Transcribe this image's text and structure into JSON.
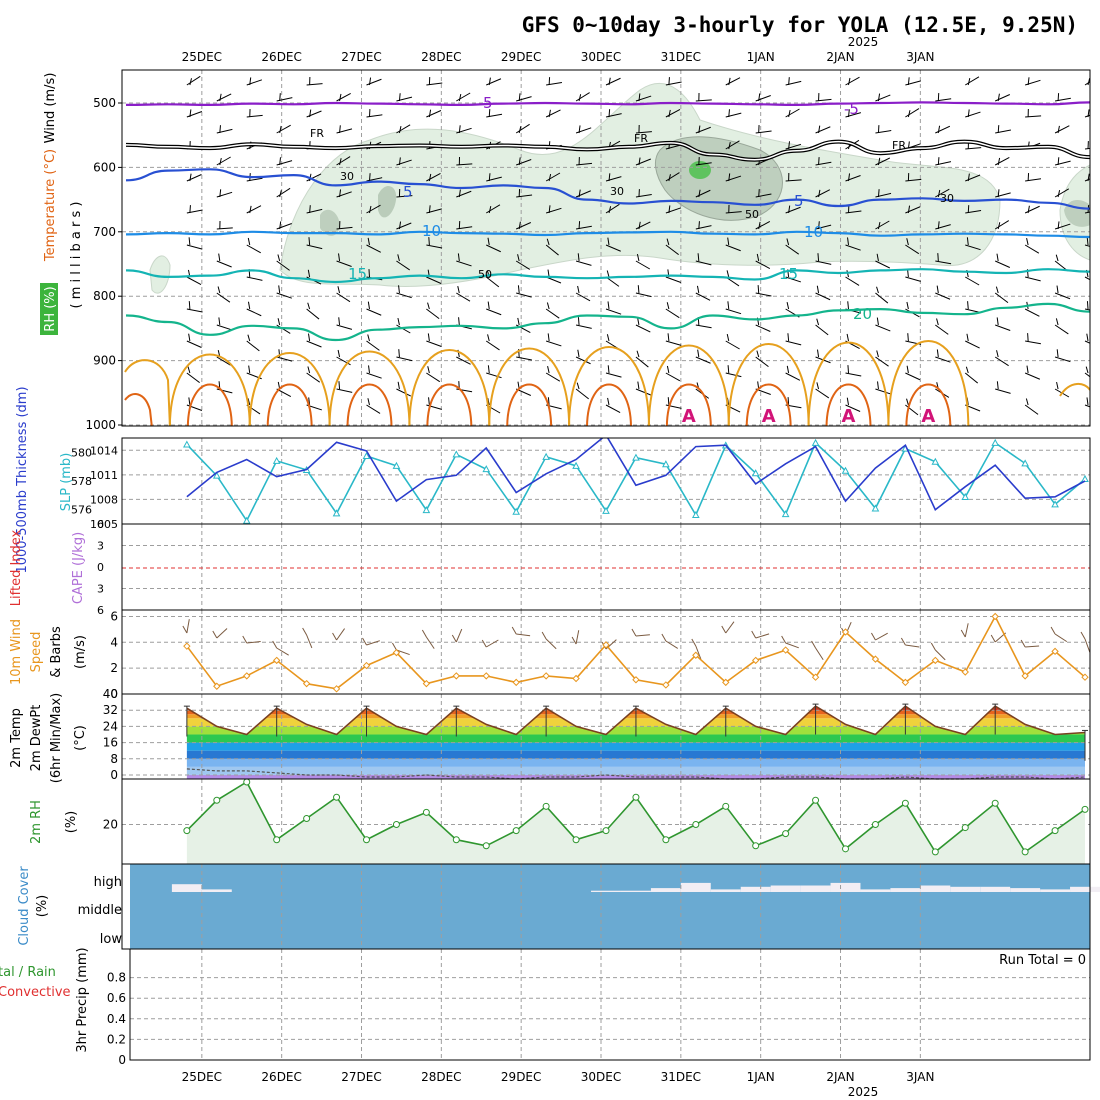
{
  "title": "GFS 0~10day 3-hourly for YOLA (12.5E, 9.25N)",
  "year_label": "2025",
  "date_labels": [
    "25DEC",
    "26DEC",
    "27DEC",
    "28DEC",
    "29DEC",
    "30DEC",
    "31DEC",
    "1JAN",
    "2JAN",
    "3JAN"
  ],
  "run_total_label": "Run Total = 0",
  "colors": {
    "wind_barb": "#000000",
    "temp_purple": "#8a1ec8",
    "temp_black": "#000000",
    "temp_blue": "#2850d2",
    "temp_lightblue": "#1e8ce6",
    "temp_teal": "#14b4b4",
    "temp_green": "#14b48c",
    "temp_orange": "#e6a01e",
    "temp_darkorange": "#e06414",
    "temp_magenta": "#d21478",
    "rh_fill": "#e2efe2",
    "rh_dark": "#a0b4a0",
    "thickness": "#2a3ccc",
    "slp": "#2ab8c8",
    "lifted_zero": "#e03030",
    "wind10m": "#e8961e",
    "temp2m_line": "#7a4020",
    "dewpt_line": "#555555",
    "rh2m": "#2f962f",
    "rh2m_fill": "#e6f1e6",
    "cloud_fill": "#6aaad2",
    "cloud_bar": "#f2eef4"
  },
  "panels": {
    "upper_air": {
      "ylabel_wind": "Wind (m/s)",
      "ylabel_temp": "Temperature (°C)",
      "ylabel_rh": "RH (%)",
      "ylabel_unit": "( m i l l i b a r s )",
      "pressure_ticks": [
        "500",
        "600",
        "700",
        "800",
        "900",
        "1000"
      ],
      "contour_labels": [
        "5",
        "-5",
        "FR",
        "FR",
        "FR",
        "-5",
        "5",
        "10",
        "15",
        "10",
        "15",
        "20",
        "30",
        "30",
        "30",
        "50",
        "50"
      ]
    },
    "thickness": {
      "ylabel_left": "1000-500mb Thickness (dm)",
      "ylabel_right": "SLP (mb)",
      "ticks_left": [
        "580",
        "578",
        "576"
      ],
      "ticks_right": [
        "1014",
        "1011",
        "1008",
        "1005"
      ]
    },
    "stability": {
      "ylabel_left": "Lifted Index",
      "ylabel_right": "CAPE (J/kg)",
      "ticks": [
        "-6",
        "-3",
        "0",
        "3",
        "6"
      ]
    },
    "wind10m": {
      "ylabel1": "10m Wind",
      "ylabel2": "Speed",
      "ylabel3": "& Barbs",
      "unit": "(m/s)",
      "ticks": [
        "6",
        "4",
        "2",
        "0"
      ]
    },
    "temp2m": {
      "ylabel1": "2m Temp",
      "ylabel2": "2m DewPt",
      "ylabel3": "(6hr Min/Max)",
      "unit": "(°C)",
      "ticks": [
        "40",
        "32",
        "24",
        "16",
        "8",
        "0"
      ]
    },
    "rh2m": {
      "ylabel": "2m RH",
      "unit": "(%)",
      "ticks": [
        "20"
      ]
    },
    "cloud": {
      "ylabel": "Cloud Cover",
      "unit": "(%)",
      "levels": [
        "high",
        "middle",
        "low"
      ]
    },
    "precip": {
      "ylabel1": "tal / Rain",
      "ylabel2": "Convective",
      "ylabel3": "3hr Precip (mm)",
      "ticks": [
        "0.8",
        "0.6",
        "0.4",
        "0.2",
        "0"
      ]
    }
  },
  "chart_data": [
    {
      "type": "line",
      "panel": "upper-air temperature contours",
      "x_unit": "forecast hour (3-hourly steps from 25DEC 00Z)",
      "xlim": [
        -6.5,
        90.5
      ],
      "ylim_pressure_mb": [
        1000,
        450
      ],
      "series": [
        {
          "name": "-5",
          "levels_mb": [
            503,
            502,
            503,
            501,
            502,
            500,
            501,
            502,
            503,
            501,
            500,
            501,
            502,
            500,
            501,
            502,
            503,
            501,
            500,
            499,
            500,
            501,
            502,
            499
          ]
        },
        {
          "name": "FR",
          "levels_mb": [
            565,
            568,
            570,
            564,
            568,
            570,
            567,
            566,
            568,
            566,
            568,
            572,
            568,
            562,
            580,
            588,
            574,
            560,
            578,
            570,
            560,
            570,
            568,
            584
          ]
        },
        {
          "name": "5",
          "levels_mb": [
            620,
            605,
            603,
            615,
            612,
            628,
            622,
            626,
            632,
            628,
            632,
            650,
            656,
            652,
            654,
            658,
            650,
            660,
            650,
            648,
            652,
            650,
            655,
            664
          ]
        },
        {
          "name": "10",
          "levels_mb": [
            704,
            702,
            704,
            700,
            702,
            702,
            704,
            700,
            702,
            703,
            705,
            702,
            701,
            700,
            703,
            704,
            700,
            702,
            706,
            704,
            703,
            704,
            706,
            708
          ]
        },
        {
          "name": "15",
          "levels_mb": [
            760,
            770,
            768,
            760,
            772,
            778,
            772,
            768,
            772,
            766,
            770,
            772,
            770,
            768,
            770,
            774,
            760,
            764,
            760,
            758,
            762,
            764,
            758,
            762
          ]
        },
        {
          "name": "20",
          "levels_mb": [
            830,
            840,
            860,
            846,
            850,
            868,
            852,
            848,
            846,
            850,
            842,
            830,
            832,
            850,
            830,
            836,
            830,
            822,
            820,
            826,
            828,
            818,
            812,
            824
          ]
        }
      ],
      "rh_contours": [
        "30",
        "50"
      ]
    },
    {
      "type": "line",
      "panel": "1000-500mb thickness & SLP",
      "x_unit": "forecast hour",
      "xlim": [
        -6.5,
        90.5
      ],
      "series": [
        {
          "name": "1000-500mb Thickness (dm)",
          "axis": "left",
          "ylim": [
            575,
            581
          ],
          "x": [
            0,
            3,
            6,
            9,
            12,
            15,
            18,
            21,
            24,
            27,
            30,
            33,
            36,
            39,
            42,
            45,
            48,
            51,
            54,
            57,
            60,
            63,
            66,
            69,
            72,
            75,
            78,
            81,
            84,
            87,
            90
          ],
          "values": [
            576.9,
            578.6,
            579.5,
            578.3,
            578.8,
            580.7,
            580.1,
            576.6,
            578.1,
            578.4,
            580.3,
            577.2,
            578.5,
            579.5,
            581.2,
            577.7,
            578.4,
            580.4,
            580.5,
            577.8,
            579.2,
            580.4,
            576.6,
            578.9,
            580.5,
            576.0,
            577.6,
            579.1,
            576.8,
            576.9,
            578.0
          ]
        },
        {
          "name": "SLP (mb)",
          "axis": "right",
          "ylim": [
            1005,
            1015.5
          ],
          "x": [
            0,
            3,
            6,
            9,
            12,
            15,
            18,
            21,
            24,
            27,
            30,
            33,
            36,
            39,
            42,
            45,
            48,
            51,
            54,
            57,
            60,
            63,
            66,
            69,
            72,
            75,
            78,
            81,
            84,
            87,
            90
          ],
          "values": [
            1014.7,
            1010.9,
            1005.4,
            1012.7,
            1011.6,
            1006.3,
            1013.3,
            1012.1,
            1006.7,
            1013.5,
            1011.7,
            1006.5,
            1013.2,
            1012.1,
            1006.6,
            1013.1,
            1012.3,
            1006.1,
            1014.6,
            1011.2,
            1006.2,
            1014.9,
            1011.5,
            1006.9,
            1014.2,
            1012.6,
            1008.3,
            1014.9,
            1012.4,
            1007.4,
            1010.5
          ]
        }
      ]
    },
    {
      "type": "line",
      "panel": "Lifted Index / CAPE",
      "ylim": [
        6,
        -6
      ],
      "series": [
        {
          "name": "Lifted Index",
          "values": []
        }
      ]
    },
    {
      "type": "line",
      "panel": "10m wind speed",
      "ylabel": "(m/s)",
      "ylim": [
        0,
        6.5
      ],
      "x": [
        0,
        3,
        6,
        9,
        12,
        15,
        18,
        21,
        24,
        27,
        30,
        33,
        36,
        39,
        42,
        45,
        48,
        51,
        54,
        57,
        60,
        63,
        66,
        69,
        72,
        75,
        78,
        81,
        84,
        87,
        90
      ],
      "values": [
        3.7,
        0.6,
        1.4,
        2.6,
        0.8,
        0.4,
        2.2,
        3.2,
        0.8,
        1.4,
        1.4,
        0.9,
        1.4,
        1.2,
        3.8,
        1.1,
        0.7,
        3.0,
        0.9,
        2.6,
        3.4,
        1.3,
        4.8,
        2.7,
        0.9,
        2.6,
        1.7,
        6.0,
        1.4,
        3.3,
        1.3
      ]
    },
    {
      "type": "line",
      "panel": "2m temperature & dew point",
      "ylabel": "(°C)",
      "ylim": [
        -2,
        40
      ],
      "series": [
        {
          "name": "2m Temp",
          "x": [
            0,
            3,
            6,
            9,
            12,
            15,
            18,
            21,
            24,
            27,
            30,
            33,
            36,
            39,
            42,
            45,
            48,
            51,
            54,
            57,
            60,
            63,
            66,
            69,
            72,
            75,
            78,
            81,
            84,
            87,
            90
          ],
          "values": [
            33,
            24,
            20,
            33,
            25,
            20,
            33,
            24,
            20,
            33,
            25,
            20,
            33,
            24,
            20,
            33,
            25,
            20,
            33,
            24,
            20,
            34,
            25,
            20,
            34,
            24,
            20,
            34,
            25,
            20,
            21
          ]
        },
        {
          "name": "2m DewPt",
          "x": [
            0,
            3,
            6,
            9,
            12,
            15,
            18,
            21,
            24,
            27,
            30,
            33,
            36,
            39,
            42,
            45,
            48,
            51,
            54,
            57,
            60,
            63,
            66,
            69,
            72,
            75,
            78,
            81,
            84,
            87,
            90
          ],
          "values": [
            3,
            2,
            2,
            1,
            0,
            0,
            -1,
            -1,
            0,
            -1,
            -1,
            -2,
            -1,
            -1,
            0,
            -1,
            -1,
            -1,
            -2,
            -2,
            -1,
            -1,
            -2,
            -2,
            -1,
            -2,
            -2,
            -1,
            -1,
            -2,
            -1
          ]
        }
      ]
    },
    {
      "type": "area",
      "panel": "2m RH",
      "ylabel": "(%)",
      "ylim": [
        7,
        35
      ],
      "x": [
        0,
        3,
        6,
        9,
        12,
        15,
        18,
        21,
        24,
        27,
        30,
        33,
        36,
        39,
        42,
        45,
        48,
        51,
        54,
        57,
        60,
        63,
        66,
        69,
        72,
        75,
        78,
        81,
        84,
        87,
        90
      ],
      "values": [
        18,
        28,
        34,
        15,
        22,
        29,
        15,
        20,
        24,
        15,
        13,
        18,
        26,
        15,
        18,
        29,
        15,
        20,
        26,
        13,
        17,
        28,
        12,
        20,
        27,
        11,
        19,
        27,
        11,
        18,
        25
      ]
    },
    {
      "type": "bar",
      "panel": "Cloud Cover (high)",
      "ylabel": "(%)",
      "ylim": [
        0,
        100
      ],
      "x": [
        0,
        3,
        6,
        9,
        12,
        15,
        18,
        21,
        24,
        27,
        30,
        33,
        36,
        39,
        42,
        45,
        48,
        51,
        54,
        57,
        60,
        63,
        66,
        69,
        72,
        75,
        78,
        81,
        84,
        87,
        90
      ],
      "values": [
        30,
        10,
        0,
        0,
        0,
        0,
        0,
        0,
        0,
        0,
        0,
        0,
        0,
        0,
        5,
        5,
        15,
        35,
        10,
        20,
        25,
        25,
        35,
        10,
        15,
        25,
        20,
        20,
        15,
        10,
        20
      ]
    },
    {
      "type": "bar",
      "panel": "3hr Precip",
      "ylabel": "3hr Precip (mm)",
      "ylim": [
        0,
        1
      ],
      "values": [],
      "run_total": 0
    }
  ]
}
